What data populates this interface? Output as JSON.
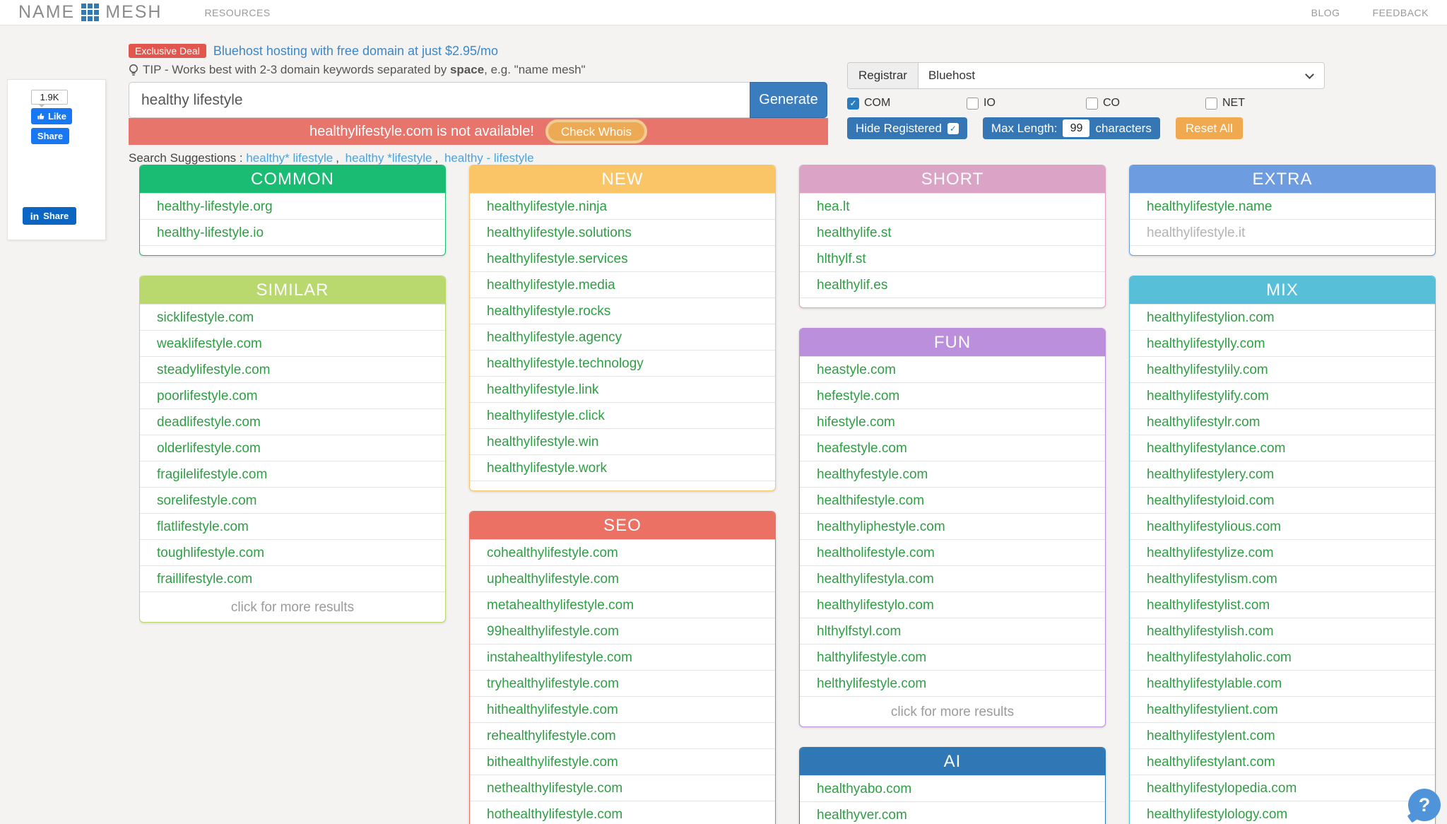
{
  "header": {
    "logo_first": "NAME",
    "logo_second": "MESH",
    "resources": "RESOURCES",
    "blog": "BLOG",
    "feedback": "FEEDBACK"
  },
  "deal": {
    "badge": "Exclusive Deal",
    "link": "Bluehost hosting with free domain at just $2.95/mo"
  },
  "tip": {
    "prefix": "TIP - Works best with 2-3 domain keywords separated by ",
    "bold": "space",
    "suffix": ", e.g. \"name mesh\""
  },
  "search": {
    "value": "healthy lifestyle",
    "generate_label": "Generate",
    "alert_text": "healthylifestyle.com is not available!",
    "whois_label": "Check Whois",
    "suggestions_label": "Search Suggestions :",
    "suggestions": [
      "healthy* lifestyle",
      "healthy *lifestyle",
      "healthy - lifestyle"
    ],
    "separator": ","
  },
  "filters": {
    "registrar_label": "Registrar",
    "registrar_value": "Bluehost",
    "tlds": [
      {
        "label": "COM",
        "checked": true
      },
      {
        "label": "IO",
        "checked": false
      },
      {
        "label": "CO",
        "checked": false
      },
      {
        "label": "NET",
        "checked": false
      }
    ],
    "hide_registered_label": "Hide Registered",
    "check_mark": "✓",
    "max_length_label": "Max Length:",
    "max_length_value": "99",
    "max_length_suffix": "characters",
    "reset_label": "Reset All"
  },
  "share": {
    "fb_count": "1.9K",
    "fb_like_label": "Like",
    "fb_share_label": "Share",
    "li_glyph": "in",
    "li_share_label": "Share"
  },
  "help_label": "?",
  "theme": {
    "page_bg": "#f4f3f1",
    "accent_blue": "#3a7dbe",
    "alert_red": "#e8756b",
    "orange": "#f0a94e",
    "link_blue": "#4aa3dd",
    "domain_green": "#2f9e44",
    "registered_gray": "#b3b3b3"
  },
  "columns": [
    {
      "cards": [
        {
          "id": "common",
          "title": "COMMON",
          "color": "#1abc74",
          "items": [
            {
              "t": "healthy-lifestyle.org",
              "s": "a"
            },
            {
              "t": "healthy-lifestyle.io",
              "s": "a"
            },
            {
              "s": "e"
            }
          ]
        },
        {
          "id": "similar",
          "title": "SIMILAR",
          "color": "#b9d86d",
          "items": [
            {
              "t": "sicklifestyle.com",
              "s": "a"
            },
            {
              "t": "weaklifestyle.com",
              "s": "a"
            },
            {
              "t": "steadylifestyle.com",
              "s": "a"
            },
            {
              "t": "poorlifestyle.com",
              "s": "a"
            },
            {
              "t": "deadlifestyle.com",
              "s": "a"
            },
            {
              "t": "olderlifestyle.com",
              "s": "a"
            },
            {
              "t": "fragilelifestyle.com",
              "s": "a"
            },
            {
              "t": "sorelifestyle.com",
              "s": "a"
            },
            {
              "t": "flatlifestyle.com",
              "s": "a"
            },
            {
              "t": "toughlifestyle.com",
              "s": "a"
            },
            {
              "t": "fraillifestyle.com",
              "s": "a"
            }
          ],
          "footer": "click for more results"
        }
      ]
    },
    {
      "cards": [
        {
          "id": "new",
          "title": "NEW",
          "color": "#f9c567",
          "items": [
            {
              "t": "healthylifestyle.ninja",
              "s": "a"
            },
            {
              "t": "healthylifestyle.solutions",
              "s": "a"
            },
            {
              "t": "healthylifestyle.services",
              "s": "a"
            },
            {
              "t": "healthylifestyle.media",
              "s": "a"
            },
            {
              "t": "healthylifestyle.rocks",
              "s": "a"
            },
            {
              "t": "healthylifestyle.agency",
              "s": "a"
            },
            {
              "t": "healthylifestyle.technology",
              "s": "a"
            },
            {
              "t": "healthylifestyle.link",
              "s": "a"
            },
            {
              "t": "healthylifestyle.click",
              "s": "a"
            },
            {
              "t": "healthylifestyle.win",
              "s": "a"
            },
            {
              "t": "healthylifestyle.work",
              "s": "a"
            },
            {
              "s": "e"
            }
          ]
        },
        {
          "id": "seo",
          "title": "SEO",
          "color": "#eb7164",
          "items": [
            {
              "t": "cohealthylifestyle.com",
              "s": "a"
            },
            {
              "t": "uphealthylifestyle.com",
              "s": "a"
            },
            {
              "t": "metahealthylifestyle.com",
              "s": "a"
            },
            {
              "t": "99healthylifestyle.com",
              "s": "a"
            },
            {
              "t": "instahealthylifestyle.com",
              "s": "a"
            },
            {
              "t": "tryhealthylifestyle.com",
              "s": "a"
            },
            {
              "t": "hithealthylifestyle.com",
              "s": "a"
            },
            {
              "t": "rehealthylifestyle.com",
              "s": "a"
            },
            {
              "t": "bithealthylifestyle.com",
              "s": "a"
            },
            {
              "t": "nethealthylifestyle.com",
              "s": "a"
            },
            {
              "t": "hothealthylifestyle.com",
              "s": "a"
            }
          ]
        }
      ]
    },
    {
      "cards": [
        {
          "id": "short",
          "title": "SHORT",
          "color": "#dba4c6",
          "items": [
            {
              "t": "hea.lt",
              "s": "a"
            },
            {
              "t": "healthylife.st",
              "s": "a"
            },
            {
              "t": "hlthylf.st",
              "s": "a"
            },
            {
              "t": "healthylif.es",
              "s": "a"
            },
            {
              "s": "e"
            }
          ]
        },
        {
          "id": "fun",
          "title": "FUN",
          "color": "#bb8fdb",
          "items": [
            {
              "t": "heastyle.com",
              "s": "a"
            },
            {
              "t": "hefestyle.com",
              "s": "a"
            },
            {
              "t": "hifestyle.com",
              "s": "a"
            },
            {
              "t": "heafestyle.com",
              "s": "a"
            },
            {
              "t": "healthyfestyle.com",
              "s": "a"
            },
            {
              "t": "healthifestyle.com",
              "s": "a"
            },
            {
              "t": "healthyliphestyle.com",
              "s": "a"
            },
            {
              "t": "healtholifestyle.com",
              "s": "a"
            },
            {
              "t": "healthylifestyla.com",
              "s": "a"
            },
            {
              "t": "healthylifestylo.com",
              "s": "a"
            },
            {
              "t": "hlthylfstyl.com",
              "s": "a"
            },
            {
              "t": "halthylifestyle.com",
              "s": "a"
            },
            {
              "t": "helthylifestyle.com",
              "s": "a"
            }
          ],
          "footer": "click for more results"
        },
        {
          "id": "ai",
          "title": "AI",
          "color": "#3077b6",
          "items": [
            {
              "t": "healthyabo.com",
              "s": "a"
            },
            {
              "t": "healthyver.com",
              "s": "a"
            }
          ]
        }
      ]
    },
    {
      "cards": [
        {
          "id": "extra",
          "title": "EXTRA",
          "color": "#6d9ce0",
          "items": [
            {
              "t": "healthylifestyle.name",
              "s": "a"
            },
            {
              "t": "healthylifestyle.it",
              "s": "r"
            },
            {
              "s": "e"
            }
          ]
        },
        {
          "id": "mix",
          "title": "MIX",
          "color": "#58bfd9",
          "items": [
            {
              "t": "healthylifestylion.com",
              "s": "a"
            },
            {
              "t": "healthylifestylly.com",
              "s": "a"
            },
            {
              "t": "healthylifestylily.com",
              "s": "a"
            },
            {
              "t": "healthylifestylify.com",
              "s": "a"
            },
            {
              "t": "healthylifestylr.com",
              "s": "a"
            },
            {
              "t": "healthylifestylance.com",
              "s": "a"
            },
            {
              "t": "healthylifestylery.com",
              "s": "a"
            },
            {
              "t": "healthylifestyloid.com",
              "s": "a"
            },
            {
              "t": "healthylifestylious.com",
              "s": "a"
            },
            {
              "t": "healthylifestylize.com",
              "s": "a"
            },
            {
              "t": "healthylifestylism.com",
              "s": "a"
            },
            {
              "t": "healthylifestylist.com",
              "s": "a"
            },
            {
              "t": "healthylifestylish.com",
              "s": "a"
            },
            {
              "t": "healthylifestylaholic.com",
              "s": "a"
            },
            {
              "t": "healthylifestylable.com",
              "s": "a"
            },
            {
              "t": "healthylifestylient.com",
              "s": "a"
            },
            {
              "t": "healthylifestylent.com",
              "s": "a"
            },
            {
              "t": "healthylifestylant.com",
              "s": "a"
            },
            {
              "t": "healthylifestylopedia.com",
              "s": "a"
            },
            {
              "t": "healthylifestylology.com",
              "s": "a"
            }
          ]
        }
      ]
    }
  ]
}
